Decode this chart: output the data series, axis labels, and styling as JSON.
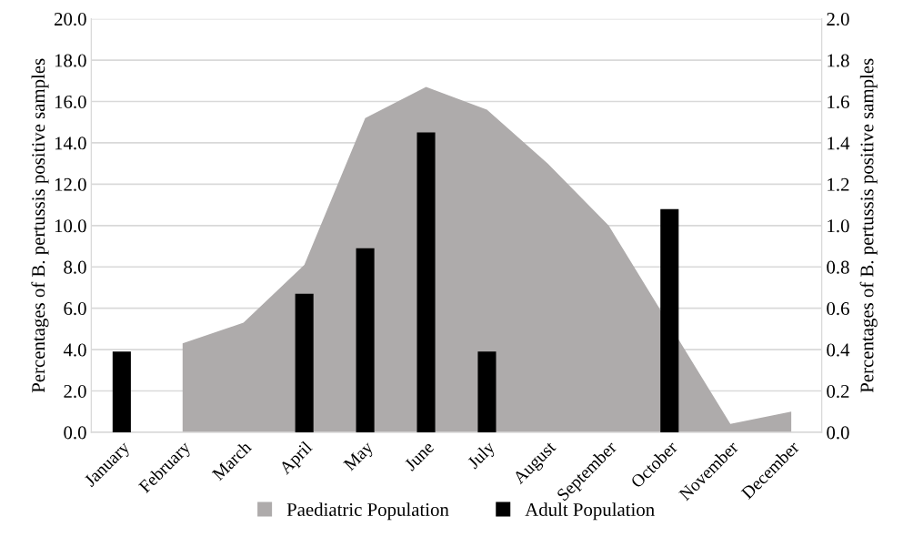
{
  "chart_data": {
    "type": "bar",
    "categories": [
      "January",
      "February",
      "March",
      "April",
      "May",
      "June",
      "July",
      "August",
      "September",
      "October",
      "November",
      "December"
    ],
    "series": [
      {
        "name": "Paediatric Population",
        "type": "area",
        "color": "#aeabab",
        "values": [
          null,
          4.3,
          5.3,
          8.1,
          15.2,
          16.7,
          15.6,
          13.0,
          10.0,
          null,
          0.4,
          1.0
        ]
      },
      {
        "name": "Adult Population",
        "axis": "y2",
        "color": "#000000",
        "values": [
          0.39,
          null,
          null,
          0.67,
          0.89,
          1.45,
          0.39,
          null,
          null,
          1.08,
          null,
          null
        ]
      }
    ],
    "ylabel": "Percentages of B. pertussis positive samples",
    "y2label": "Percentages of B. pertussis positive samples",
    "ylim": [
      0,
      20
    ],
    "yticks": [
      {
        "value": 0,
        "label": "0.0"
      },
      {
        "value": 2,
        "label": "2.0"
      },
      {
        "value": 4,
        "label": "4.0"
      },
      {
        "value": 6,
        "label": "6.0"
      },
      {
        "value": 8,
        "label": "8.0"
      },
      {
        "value": 10,
        "label": "10.0"
      },
      {
        "value": 12,
        "label": "12.0"
      },
      {
        "value": 14,
        "label": "14.0"
      },
      {
        "value": 16,
        "label": "16.0"
      },
      {
        "value": 18,
        "label": "18.0"
      },
      {
        "value": 20,
        "label": "20.0"
      }
    ],
    "y2lim": [
      0,
      2
    ],
    "y2ticks": [
      {
        "value": 0,
        "label": "0.0"
      },
      {
        "value": 0.2,
        "label": "0.2"
      },
      {
        "value": 0.4,
        "label": "0.4"
      },
      {
        "value": 0.6,
        "label": "0.6"
      },
      {
        "value": 0.8,
        "label": "0.8"
      },
      {
        "value": 1.0,
        "label": "1.0"
      },
      {
        "value": 1.2,
        "label": "1.2"
      },
      {
        "value": 1.4,
        "label": "1.4"
      },
      {
        "value": 1.6,
        "label": "1.6"
      },
      {
        "value": 1.8,
        "label": "1.8"
      },
      {
        "value": 2.0,
        "label": "2.0"
      }
    ],
    "grid": "y",
    "legend": "bottom"
  }
}
